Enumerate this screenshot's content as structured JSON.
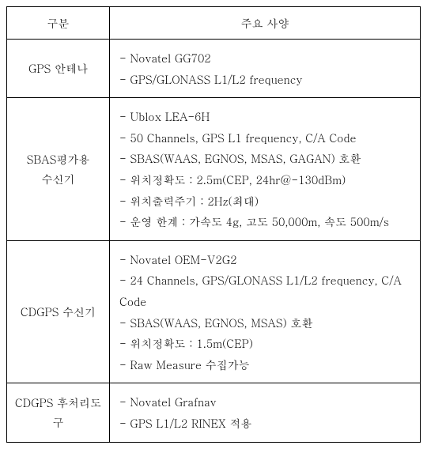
{
  "table": {
    "headers": {
      "category": "구분",
      "spec": "주요 사양"
    },
    "rows": [
      {
        "label": "GPS 안테나",
        "specs": [
          "- Novatel GG702",
          "- GPS/GLONASS L1/L2 frequency"
        ]
      },
      {
        "label": "SBAS평가용\n수신기",
        "specs": [
          "- Ublox LEA-6H",
          "- 50 Channels, GPS L1 frequency, C/A Code",
          "- SBAS(WAAS, EGNOS, MSAS, GAGAN) 호환",
          "- 위치정확도 : 2.5m(CEP, 24hr@-130dBm)",
          "- 위치출력주기 : 2Hz(최대)",
          "- 운영 한계 : 가속도 4g, 고도 50,000m, 속도 500m/s"
        ]
      },
      {
        "label": "CDGPS 수신기",
        "specs": [
          "- Novatel OEM-V2G2",
          "- 24 Channels, GPS/GLONASS L1/L2 frequency, C/A Code",
          "- SBAS(WAAS, EGNOS, MSAS) 호환",
          "- 위치정확도 : 1.5m(CEP)",
          "- Raw Measure 수집가능"
        ]
      },
      {
        "label": "CDGPS 후처리도구",
        "specs": [
          "- Novatel Grafnav",
          "- GPS L1/L2 RINEX 적용"
        ]
      }
    ]
  }
}
